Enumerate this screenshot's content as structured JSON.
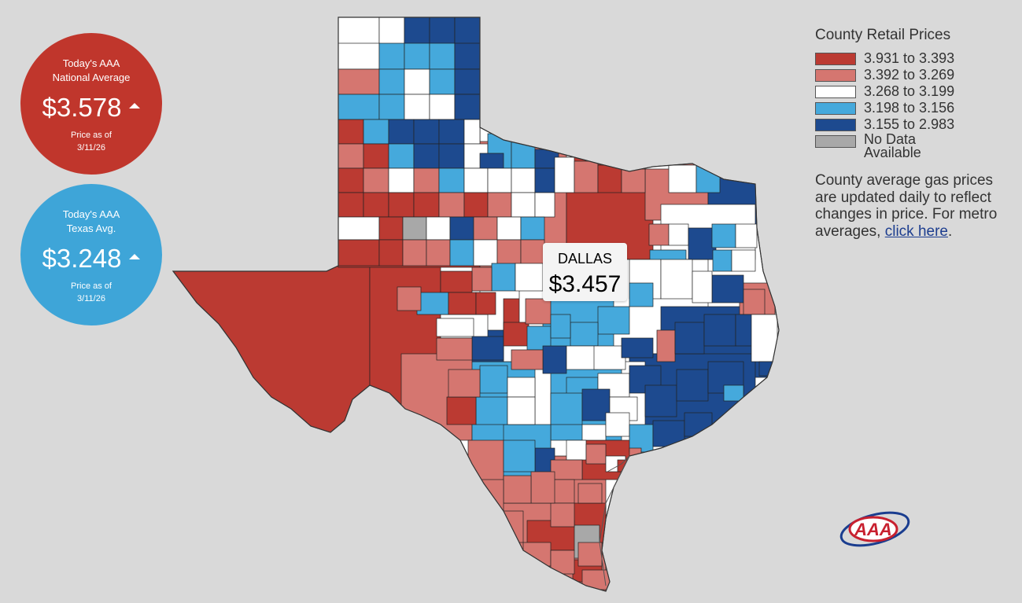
{
  "national": {
    "line1": "Today's AAA",
    "line2": "National Average",
    "price": "$3.578",
    "asof": "Price as of",
    "date": "3/11/26",
    "color": "#c0362c"
  },
  "texas": {
    "line1": "Today's AAA",
    "line2": "Texas Avg.",
    "price": "$3.248",
    "asof": "Price as of",
    "date": "3/11/26",
    "color": "#3ea5d8"
  },
  "tooltip": {
    "city": "DALLAS",
    "price": "$3.457"
  },
  "legend": {
    "title": "County Retail Prices",
    "items": [
      {
        "label": "3.931 to 3.393",
        "color": "#bb3a32"
      },
      {
        "label": "3.392 to 3.269",
        "color": "#d57670"
      },
      {
        "label": "3.268 to 3.199",
        "color": "#ffffff"
      },
      {
        "label": "3.198 to 3.156",
        "color": "#45a9dc"
      },
      {
        "label": "3.155 to 2.983",
        "color": "#1d4a8f"
      }
    ],
    "nodata_line1": "No Data",
    "nodata_line2": "Available",
    "nodata_color": "#a8a8a8",
    "desc": "County average gas prices are updated daily to reflect changes in price. For metro averages,",
    "link": "click here",
    "after_link": "."
  },
  "logo_text": "AAA"
}
